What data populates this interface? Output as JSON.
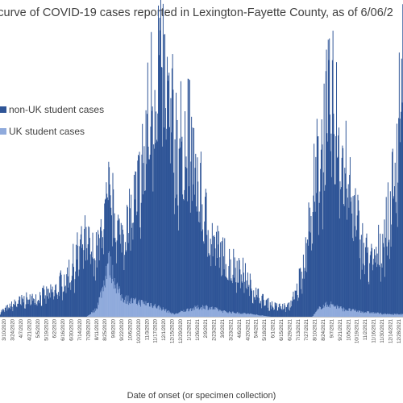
{
  "chart_data": {
    "type": "bar",
    "stacked": true,
    "title": "c curve of COVID-19 cases reported in Lexington-Fayette County, as of 6/06/2",
    "xlabel": "Date of onset (or specimen collection)",
    "ylabel": "",
    "legend_position": "left",
    "grid": false,
    "colors": {
      "non_uk": "#2f5597",
      "uk": "#8faadc",
      "axis": "#bfbfbf"
    },
    "series": [
      {
        "name": "non-UK student cases",
        "key": "non_uk",
        "points": [
          [
            "2020-03-01",
            2
          ],
          [
            "2020-04-01",
            6
          ],
          [
            "2020-05-01",
            8
          ],
          [
            "2020-06-01",
            10
          ],
          [
            "2020-07-01",
            20
          ],
          [
            "2020-07-20",
            30
          ],
          [
            "2020-08-10",
            22
          ],
          [
            "2020-09-01",
            28
          ],
          [
            "2020-09-20",
            24
          ],
          [
            "2020-10-10",
            35
          ],
          [
            "2020-10-25",
            50
          ],
          [
            "2020-11-05",
            70
          ],
          [
            "2020-11-15",
            90
          ],
          [
            "2020-11-25",
            100
          ],
          [
            "2020-12-05",
            88
          ],
          [
            "2020-12-15",
            75
          ],
          [
            "2020-12-28",
            68
          ],
          [
            "2021-01-10",
            70
          ],
          [
            "2021-01-25",
            55
          ],
          [
            "2021-02-10",
            35
          ],
          [
            "2021-03-01",
            25
          ],
          [
            "2021-03-20",
            20
          ],
          [
            "2021-04-10",
            18
          ],
          [
            "2021-05-01",
            10
          ],
          [
            "2021-05-20",
            6
          ],
          [
            "2021-06-10",
            4
          ],
          [
            "2021-07-01",
            4
          ],
          [
            "2021-07-15",
            10
          ],
          [
            "2021-07-28",
            25
          ],
          [
            "2021-08-10",
            45
          ],
          [
            "2021-08-25",
            65
          ],
          [
            "2021-09-05",
            75
          ],
          [
            "2021-09-15",
            78
          ],
          [
            "2021-09-25",
            70
          ],
          [
            "2021-10-05",
            55
          ],
          [
            "2021-10-20",
            40
          ],
          [
            "2021-11-05",
            25
          ],
          [
            "2021-11-20",
            20
          ],
          [
            "2021-12-05",
            28
          ],
          [
            "2021-12-20",
            40
          ],
          [
            "2022-01-01",
            70
          ],
          [
            "2022-01-10",
            110
          ]
        ]
      },
      {
        "name": "UK student cases",
        "key": "uk",
        "points": [
          [
            "2020-03-01",
            0
          ],
          [
            "2020-07-25",
            0
          ],
          [
            "2020-08-10",
            3
          ],
          [
            "2020-08-22",
            12
          ],
          [
            "2020-08-30",
            22
          ],
          [
            "2020-09-08",
            16
          ],
          [
            "2020-09-20",
            8
          ],
          [
            "2020-10-10",
            6
          ],
          [
            "2020-11-10",
            5
          ],
          [
            "2020-12-01",
            3
          ],
          [
            "2020-12-20",
            1
          ],
          [
            "2021-01-15",
            3
          ],
          [
            "2021-02-10",
            4
          ],
          [
            "2021-03-15",
            2
          ],
          [
            "2021-05-01",
            1
          ],
          [
            "2021-06-01",
            0
          ],
          [
            "2021-08-10",
            0
          ],
          [
            "2021-08-25",
            4
          ],
          [
            "2021-09-10",
            5
          ],
          [
            "2021-10-01",
            3
          ],
          [
            "2021-11-01",
            2
          ],
          [
            "2021-12-15",
            1
          ],
          [
            "2022-01-10",
            1
          ]
        ]
      }
    ],
    "x_range": [
      "2020-03-01",
      "2022-01-10"
    ],
    "y_range": [
      0,
      115
    ],
    "x_tick_labels": [
      "3/10/2020",
      "3/24/2020",
      "4/7/2020",
      "4/21/2020",
      "5/5/2020",
      "5/19/2020",
      "6/2/2020",
      "6/16/2020",
      "6/30/2020",
      "7/14/2020",
      "7/28/2020",
      "8/11/2020",
      "8/25/2020",
      "9/8/2020",
      "9/22/2020",
      "10/6/2020",
      "10/20/2020",
      "11/3/2020",
      "11/17/2020",
      "12/1/2020",
      "12/15/2020",
      "12/29/2020",
      "1/12/2021",
      "1/26/2021",
      "2/9/2021",
      "2/23/2021",
      "3/9/2021",
      "3/23/2021",
      "4/6/2021",
      "4/20/2021",
      "5/4/2021",
      "5/18/2021",
      "6/1/2021",
      "6/15/2021",
      "6/29/2021",
      "7/13/2021",
      "7/27/2021",
      "8/10/2021",
      "8/24/2021",
      "9/7/2021",
      "9/21/2021",
      "10/5/2021",
      "10/19/2021",
      "11/2/2021",
      "11/16/2021",
      "11/30/2021",
      "12/14/2021",
      "12/28/2021"
    ]
  }
}
